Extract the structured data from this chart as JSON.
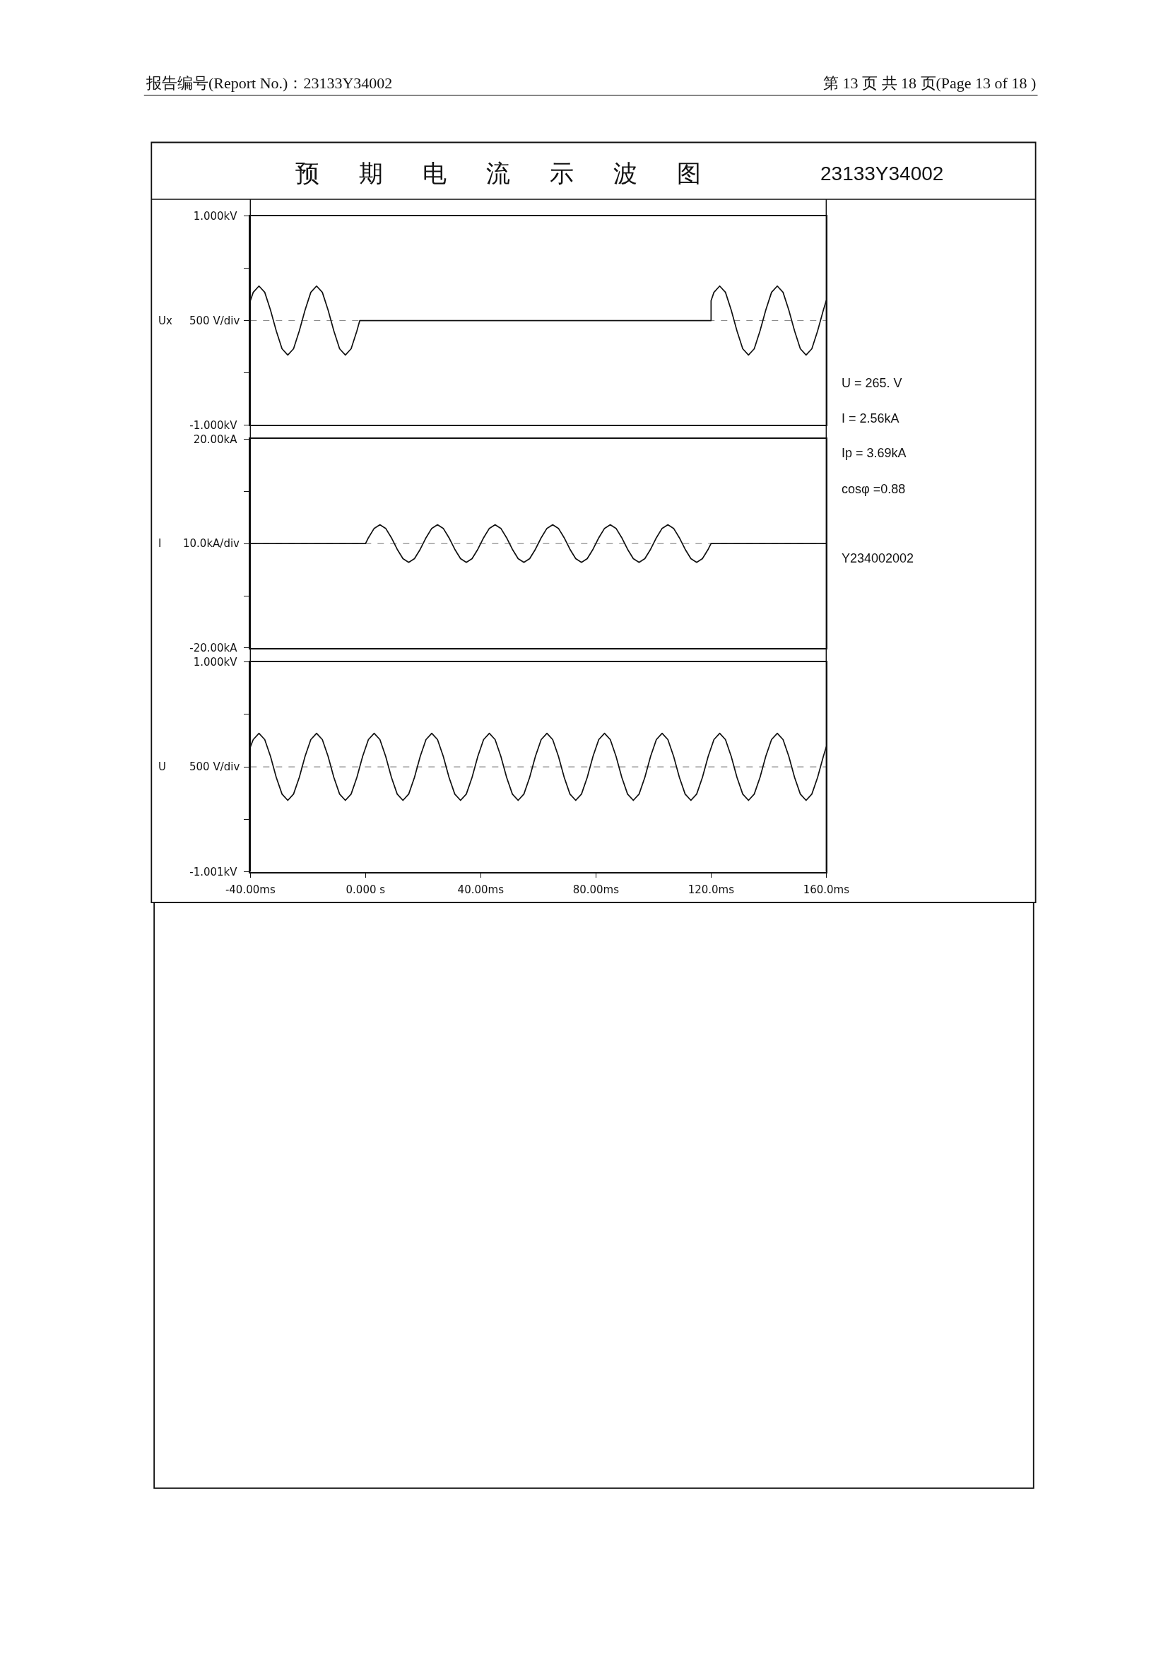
{
  "chart_data": [
    {
      "type": "line",
      "title": "预期电流示波图",
      "annotations": [
        "23133Y34002",
        "报告编号(Report No.)：23133Y34002",
        "第 13 页 共 18 页(Page 13 of 18 )"
      ],
      "ylabel": "Ux",
      "color": "#111111",
      "x": [
        -40,
        -39,
        -37,
        -35,
        -33,
        -31,
        -29,
        -27,
        -25,
        -23,
        -21,
        -19,
        -17,
        -15,
        -13,
        -11,
        -9,
        -7,
        -5,
        -3,
        -2,
        120,
        120,
        121,
        123,
        125,
        127,
        129,
        131,
        133,
        135,
        137,
        139,
        141,
        143,
        145,
        147,
        149,
        151,
        153,
        155,
        157,
        159,
        160
      ],
      "values": [
        0.19,
        0.27,
        0.33,
        0.27,
        0.1,
        -0.1,
        -0.27,
        -0.33,
        -0.27,
        -0.1,
        0.1,
        0.27,
        0.33,
        0.27,
        0.1,
        -0.1,
        -0.27,
        -0.33,
        -0.27,
        -0.1,
        0,
        0,
        0.19,
        0.27,
        0.33,
        0.27,
        0.1,
        -0.1,
        -0.27,
        -0.33,
        -0.27,
        -0.1,
        0.1,
        0.27,
        0.33,
        0.27,
        0.1,
        -0.1,
        -0.27,
        -0.33,
        -0.27,
        -0.1,
        0.1,
        0.19
      ],
      "xlim": [
        -40,
        160
      ],
      "ylim": [
        -1,
        1
      ],
      "yticks": [
        {
          "value": 1,
          "label": "1.000kV"
        },
        {
          "value": 0.5,
          "label": null
        },
        {
          "value": 0,
          "label": null
        },
        {
          "value": -0.5,
          "label": null
        },
        {
          "value": -1,
          "label": "-1.000kV"
        }
      ],
      "ref_lines": [
        {
          "axis": "y",
          "value": 0,
          "label": "500 V/div",
          "line_style": "dashed",
          "color": "#8c8c8c"
        }
      ],
      "tick_labels": "y"
    },
    {
      "type": "line",
      "ylabel": "I",
      "color": "#111111",
      "x": [
        -40,
        0,
        1,
        3,
        5,
        7,
        9,
        11,
        13,
        15,
        17,
        19,
        21,
        23,
        25,
        27,
        29,
        31,
        33,
        35,
        37,
        39,
        41,
        43,
        45,
        47,
        49,
        51,
        53,
        55,
        57,
        59,
        61,
        63,
        65,
        67,
        69,
        71,
        73,
        75,
        77,
        79,
        81,
        83,
        85,
        87,
        89,
        91,
        93,
        95,
        97,
        99,
        101,
        103,
        105,
        107,
        109,
        111,
        113,
        115,
        117,
        119,
        120,
        160
      ],
      "values": [
        0,
        0,
        1.1,
        2.9,
        3.6,
        2.9,
        1.1,
        -1.1,
        -2.9,
        -3.6,
        -2.9,
        -1.1,
        1.1,
        2.9,
        3.6,
        2.9,
        1.1,
        -1.1,
        -2.9,
        -3.6,
        -2.9,
        -1.1,
        1.1,
        2.9,
        3.6,
        2.9,
        1.1,
        -1.1,
        -2.9,
        -3.6,
        -2.9,
        -1.1,
        1.1,
        2.9,
        3.6,
        2.9,
        1.1,
        -1.1,
        -2.9,
        -3.6,
        -2.9,
        -1.1,
        1.1,
        2.9,
        3.6,
        2.9,
        1.1,
        -1.1,
        -2.9,
        -3.6,
        -2.9,
        -1.1,
        1.1,
        2.9,
        3.6,
        2.9,
        1.1,
        -1.1,
        -2.9,
        -3.6,
        -2.9,
        -1.1,
        0,
        0
      ],
      "xlim": [
        -40,
        160
      ],
      "ylim": [
        -20,
        20
      ],
      "yticks": [
        {
          "value": 20,
          "label": "20.00kA"
        },
        {
          "value": 10,
          "label": null
        },
        {
          "value": 0,
          "label": null
        },
        {
          "value": -10,
          "label": null
        },
        {
          "value": -20,
          "label": "-20.00kA"
        }
      ],
      "ref_lines": [
        {
          "axis": "y",
          "value": 0,
          "label": "10.0kA/div",
          "line_style": "dashed",
          "color": "#8c8c8c"
        }
      ],
      "tick_labels": "y"
    },
    {
      "type": "line",
      "ylabel": "U",
      "color": "#111111",
      "x": [
        -40,
        -39,
        -37,
        -35,
        -33,
        -31,
        -29,
        -27,
        -25,
        -23,
        -21,
        -19,
        -17,
        -15,
        -13,
        -11,
        -9,
        -7,
        -5,
        -3,
        -1,
        1,
        3,
        5,
        7,
        9,
        11,
        13,
        15,
        17,
        19,
        21,
        23,
        25,
        27,
        29,
        31,
        33,
        35,
        37,
        39,
        41,
        43,
        45,
        47,
        49,
        51,
        53,
        55,
        57,
        59,
        61,
        63,
        65,
        67,
        69,
        71,
        73,
        75,
        77,
        79,
        81,
        83,
        85,
        87,
        89,
        91,
        93,
        95,
        97,
        99,
        101,
        103,
        105,
        107,
        109,
        111,
        113,
        115,
        117,
        119,
        121,
        123,
        125,
        127,
        129,
        131,
        133,
        135,
        137,
        139,
        141,
        143,
        145,
        147,
        149,
        151,
        153,
        155,
        157,
        159,
        160
      ],
      "values": [
        0.19,
        0.26,
        0.32,
        0.26,
        0.1,
        -0.1,
        -0.26,
        -0.32,
        -0.26,
        -0.1,
        0.1,
        0.26,
        0.32,
        0.26,
        0.1,
        -0.1,
        -0.26,
        -0.32,
        -0.26,
        -0.1,
        0.1,
        0.26,
        0.32,
        0.26,
        0.1,
        -0.1,
        -0.26,
        -0.32,
        -0.26,
        -0.1,
        0.1,
        0.26,
        0.32,
        0.26,
        0.1,
        -0.1,
        -0.26,
        -0.32,
        -0.26,
        -0.1,
        0.1,
        0.26,
        0.32,
        0.26,
        0.1,
        -0.1,
        -0.26,
        -0.32,
        -0.26,
        -0.1,
        0.1,
        0.26,
        0.32,
        0.26,
        0.1,
        -0.1,
        -0.26,
        -0.32,
        -0.26,
        -0.1,
        0.1,
        0.26,
        0.32,
        0.26,
        0.1,
        -0.1,
        -0.26,
        -0.32,
        -0.26,
        -0.1,
        0.1,
        0.26,
        0.32,
        0.26,
        0.1,
        -0.1,
        -0.26,
        -0.32,
        -0.26,
        -0.1,
        0.1,
        0.26,
        0.32,
        0.26,
        0.1,
        -0.1,
        -0.26,
        -0.32,
        -0.26,
        -0.1,
        0.1,
        0.26,
        0.32,
        0.26,
        0.1,
        -0.1,
        -0.26,
        -0.32,
        -0.26,
        -0.1,
        0.1,
        0.19
      ],
      "xlim": [
        -40,
        160
      ],
      "ylim": [
        -1.001,
        1
      ],
      "xticks": [
        {
          "value": -40,
          "label": "-40.00ms"
        },
        {
          "value": 0,
          "label": "0.000 s"
        },
        {
          "value": 40,
          "label": "40.00ms"
        },
        {
          "value": 80,
          "label": "80.00ms"
        },
        {
          "value": 120,
          "label": "120.0ms"
        },
        {
          "value": 160,
          "label": "160.0ms"
        }
      ],
      "yticks": [
        {
          "value": 1,
          "label": "1.000kV"
        },
        {
          "value": 0.5,
          "label": null
        },
        {
          "value": 0,
          "label": null
        },
        {
          "value": -0.5,
          "label": null
        },
        {
          "value": -1.001,
          "label": "-1.001kV"
        }
      ],
      "ref_lines": [
        {
          "axis": "y",
          "value": 0,
          "label": "500 V/div",
          "line_style": "dashed",
          "color": "#8c8c8c"
        }
      ]
    },
    {
      "type": "other",
      "annotations": [
        "U = 265. V",
        "I = 2.56kA",
        "Ip = 3.69kA",
        "cosφ =0.88",
        "Y234002002"
      ]
    }
  ]
}
